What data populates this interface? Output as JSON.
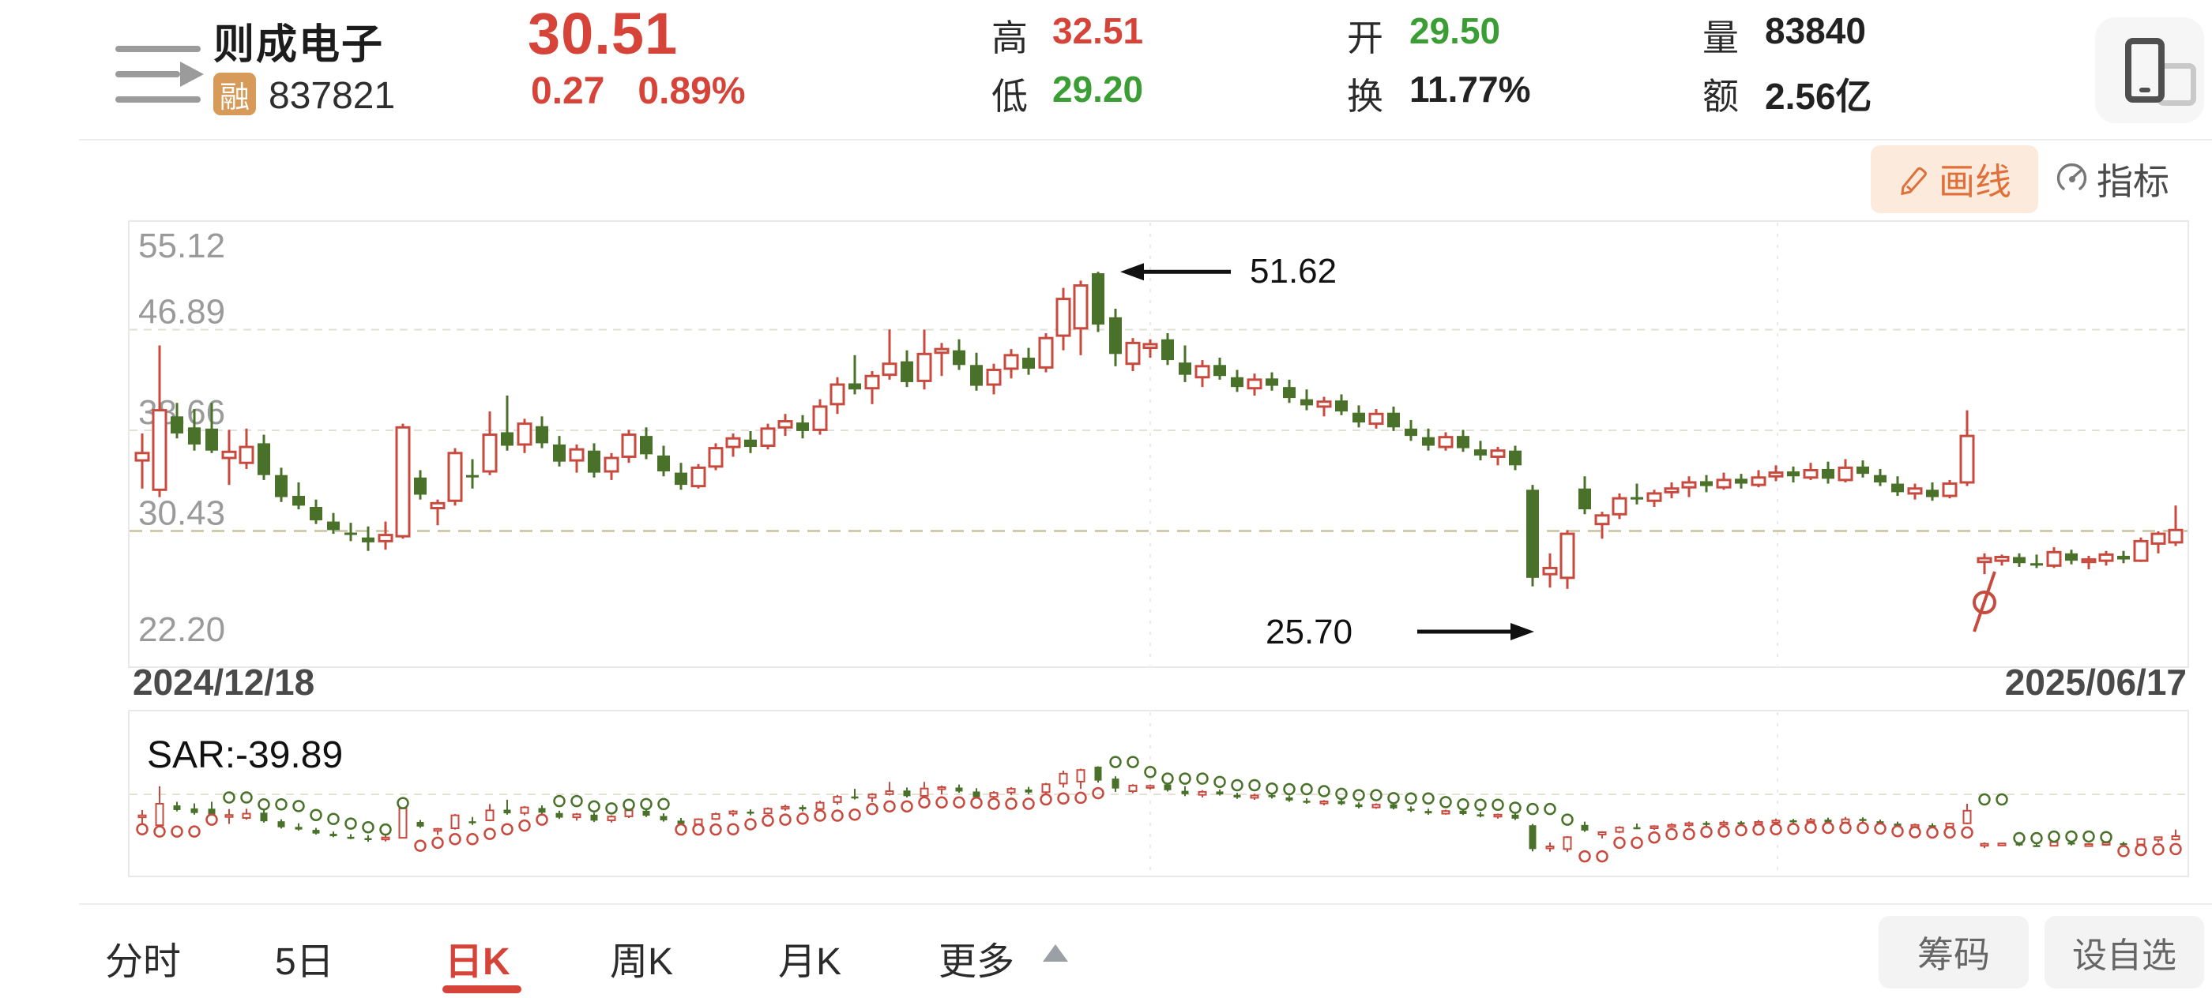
{
  "header": {
    "stock_name": "则成电子",
    "stock_code": "837821",
    "margin_badge": "融",
    "price": "30.51",
    "change": "0.27",
    "change_pct": "0.89%",
    "stats": [
      {
        "label": "高",
        "value": "32.51",
        "color": "red"
      },
      {
        "label": "低",
        "value": "29.20",
        "color": "green"
      },
      {
        "label": "开",
        "value": "29.50",
        "color": "green"
      },
      {
        "label": "换",
        "value": "11.77%",
        "color": "dark"
      },
      {
        "label": "量",
        "value": "83840",
        "color": "dark"
      },
      {
        "label": "额",
        "value": "2.56亿",
        "color": "dark"
      }
    ]
  },
  "toolbar": {
    "draw_line": "画线",
    "indicator": "指标"
  },
  "tabs": {
    "items": [
      "分时",
      "5日",
      "日K",
      "周K",
      "月K",
      "更多"
    ],
    "active": "日K"
  },
  "actions": {
    "chips": "筹码",
    "watchlist": "设自选"
  },
  "colors": {
    "up_red": "#c8493e",
    "down_green": "#49712a",
    "text_red": "#d64338",
    "text_green": "#3b9e34",
    "accent_orange": "#e0703a",
    "axis_gray": "#9a9a9a"
  },
  "chart_data": {
    "type": "candlestick",
    "title": "则成电子 837821 日K",
    "y_ticks": [
      55.12,
      46.89,
      38.66,
      30.43,
      22.2
    ],
    "start_date": "2024/12/18",
    "end_date": "2025/06/17",
    "high_annotation": "51.62",
    "low_annotation": "25.70",
    "sar_label": "SAR:-39.89",
    "ex_rights_index": 106,
    "candles": [
      [
        36.2,
        38.4,
        33.9,
        36.8
      ],
      [
        33.8,
        45.6,
        33.2,
        40.3
      ],
      [
        39.8,
        40.9,
        38.0,
        38.4
      ],
      [
        38.9,
        40.4,
        37.0,
        37.5
      ],
      [
        38.8,
        40.9,
        36.8,
        37.0
      ],
      [
        36.4,
        38.7,
        34.2,
        36.9
      ],
      [
        36.0,
        38.8,
        35.5,
        37.3
      ],
      [
        37.6,
        38.3,
        34.6,
        35.0
      ],
      [
        35.0,
        35.6,
        32.8,
        33.2
      ],
      [
        33.3,
        34.4,
        32.2,
        32.5
      ],
      [
        32.4,
        33.0,
        31.0,
        31.3
      ],
      [
        31.2,
        31.9,
        30.2,
        30.5
      ],
      [
        30.3,
        31.1,
        29.6,
        30.2
      ],
      [
        29.9,
        30.8,
        28.8,
        29.5
      ],
      [
        29.6,
        31.2,
        28.9,
        30.1
      ],
      [
        30.0,
        39.2,
        29.8,
        38.9
      ],
      [
        34.8,
        35.4,
        33.0,
        33.4
      ],
      [
        32.3,
        33.0,
        30.9,
        32.7
      ],
      [
        32.9,
        37.2,
        32.5,
        36.8
      ],
      [
        35.0,
        36.3,
        33.9,
        34.9
      ],
      [
        35.3,
        40.2,
        35.0,
        38.3
      ],
      [
        38.5,
        41.5,
        37.0,
        37.4
      ],
      [
        37.5,
        39.6,
        36.8,
        39.2
      ],
      [
        39.0,
        39.8,
        37.2,
        37.6
      ],
      [
        37.5,
        38.2,
        35.7,
        36.1
      ],
      [
        36.2,
        37.5,
        35.2,
        37.1
      ],
      [
        37.0,
        37.6,
        34.8,
        35.2
      ],
      [
        35.3,
        36.8,
        34.6,
        36.4
      ],
      [
        36.5,
        38.7,
        36.0,
        38.3
      ],
      [
        38.2,
        38.9,
        36.3,
        36.7
      ],
      [
        36.6,
        37.4,
        34.9,
        35.3
      ],
      [
        35.2,
        36.0,
        33.8,
        34.2
      ],
      [
        34.1,
        35.9,
        33.9,
        35.6
      ],
      [
        35.7,
        37.6,
        35.4,
        37.2
      ],
      [
        37.3,
        38.4,
        36.5,
        38.0
      ],
      [
        37.9,
        38.6,
        36.8,
        37.3
      ],
      [
        37.4,
        39.2,
        37.1,
        38.8
      ],
      [
        38.9,
        40.0,
        38.2,
        39.4
      ],
      [
        39.3,
        39.9,
        38.0,
        38.6
      ],
      [
        38.7,
        41.2,
        38.3,
        40.6
      ],
      [
        40.8,
        43.0,
        40.0,
        42.4
      ],
      [
        42.5,
        44.8,
        41.6,
        42.0
      ],
      [
        42.1,
        43.5,
        40.8,
        43.1
      ],
      [
        43.2,
        46.9,
        42.8,
        44.1
      ],
      [
        44.3,
        45.2,
        42.2,
        42.6
      ],
      [
        42.7,
        46.9,
        42.0,
        44.9
      ],
      [
        45.0,
        45.8,
        43.1,
        45.3
      ],
      [
        45.2,
        46.1,
        43.6,
        44.0
      ],
      [
        44.0,
        45.0,
        41.9,
        42.3
      ],
      [
        42.4,
        44.1,
        41.6,
        43.6
      ],
      [
        43.7,
        45.3,
        42.9,
        44.8
      ],
      [
        44.6,
        45.4,
        43.2,
        43.7
      ],
      [
        43.8,
        46.6,
        43.4,
        46.2
      ],
      [
        46.4,
        50.3,
        45.2,
        49.4
      ],
      [
        47.0,
        50.9,
        44.8,
        50.5
      ],
      [
        51.5,
        51.62,
        46.7,
        47.3
      ],
      [
        47.9,
        48.6,
        43.9,
        44.9
      ],
      [
        44.1,
        46.2,
        43.5,
        45.8
      ],
      [
        45.4,
        46.1,
        44.6,
        45.7
      ],
      [
        46.1,
        46.6,
        44.0,
        44.4
      ],
      [
        44.2,
        45.6,
        42.6,
        43.2
      ],
      [
        43.0,
        44.4,
        42.2,
        43.9
      ],
      [
        44.0,
        44.6,
        42.8,
        43.1
      ],
      [
        43.0,
        43.6,
        41.8,
        42.2
      ],
      [
        42.1,
        43.3,
        41.5,
        42.8
      ],
      [
        42.9,
        43.4,
        41.9,
        42.3
      ],
      [
        42.2,
        42.8,
        40.9,
        41.3
      ],
      [
        41.2,
        42.0,
        40.3,
        40.7
      ],
      [
        40.6,
        41.4,
        39.8,
        41.0
      ],
      [
        41.1,
        41.6,
        39.9,
        40.2
      ],
      [
        40.1,
        40.7,
        38.9,
        39.3
      ],
      [
        39.2,
        40.4,
        38.8,
        40.0
      ],
      [
        40.1,
        40.6,
        38.6,
        38.9
      ],
      [
        38.8,
        39.5,
        37.8,
        38.2
      ],
      [
        38.1,
        38.8,
        37.0,
        37.4
      ],
      [
        37.3,
        38.5,
        37.0,
        38.1
      ],
      [
        38.2,
        38.7,
        36.9,
        37.2
      ],
      [
        37.1,
        37.8,
        36.2,
        36.6
      ],
      [
        36.5,
        37.3,
        35.8,
        37.0
      ],
      [
        37.0,
        37.4,
        35.4,
        35.8
      ],
      [
        33.8,
        34.2,
        25.9,
        26.6
      ],
      [
        26.9,
        28.6,
        25.8,
        27.4
      ],
      [
        26.6,
        30.5,
        25.7,
        30.2
      ],
      [
        33.9,
        34.9,
        31.8,
        32.2
      ],
      [
        31.0,
        32.0,
        29.8,
        31.7
      ],
      [
        31.8,
        33.5,
        31.4,
        33.1
      ],
      [
        33.2,
        34.3,
        32.6,
        33.0
      ],
      [
        32.9,
        33.8,
        32.4,
        33.5
      ],
      [
        33.6,
        34.4,
        33.1,
        33.9
      ],
      [
        34.0,
        34.9,
        33.2,
        34.4
      ],
      [
        34.5,
        35.0,
        33.6,
        34.1
      ],
      [
        34.0,
        35.2,
        33.8,
        34.6
      ],
      [
        34.7,
        35.1,
        33.9,
        34.3
      ],
      [
        34.2,
        35.4,
        34.0,
        34.8
      ],
      [
        34.9,
        35.8,
        34.5,
        35.2
      ],
      [
        35.3,
        35.7,
        34.4,
        34.9
      ],
      [
        34.8,
        36.0,
        34.6,
        35.4
      ],
      [
        35.5,
        36.1,
        34.3,
        34.7
      ],
      [
        34.6,
        36.3,
        34.4,
        35.6
      ],
      [
        35.7,
        36.2,
        34.8,
        35.1
      ],
      [
        35.0,
        35.5,
        34.1,
        34.4
      ],
      [
        34.3,
        34.9,
        33.3,
        33.6
      ],
      [
        33.5,
        34.3,
        33.0,
        33.9
      ],
      [
        33.8,
        34.4,
        32.9,
        33.2
      ],
      [
        33.3,
        34.6,
        33.1,
        34.3
      ],
      [
        34.4,
        40.3,
        34.1,
        38.2
      ],
      [
        27.9,
        28.6,
        26.9,
        28.2
      ],
      [
        28.0,
        28.5,
        27.6,
        28.3
      ],
      [
        28.3,
        28.6,
        27.5,
        27.8
      ],
      [
        27.8,
        28.5,
        27.4,
        27.6
      ],
      [
        27.6,
        29.1,
        27.4,
        28.7
      ],
      [
        28.6,
        28.9,
        27.7,
        28.0
      ],
      [
        27.9,
        28.4,
        27.3,
        28.1
      ],
      [
        28.0,
        28.8,
        27.6,
        28.5
      ],
      [
        28.4,
        28.8,
        27.8,
        28.1
      ],
      [
        28.0,
        29.9,
        27.9,
        29.6
      ],
      [
        29.4,
        30.4,
        28.6,
        30.2
      ],
      [
        29.5,
        32.51,
        29.2,
        30.51
      ]
    ],
    "sar_segments": [
      [
        0,
        4,
        1
      ],
      [
        5,
        15,
        -1
      ],
      [
        16,
        23,
        1
      ],
      [
        24,
        30,
        -1
      ],
      [
        31,
        55,
        1
      ],
      [
        56,
        82,
        -1
      ],
      [
        83,
        105,
        1
      ],
      [
        106,
        113,
        -1
      ],
      [
        114,
        117,
        1
      ]
    ]
  }
}
